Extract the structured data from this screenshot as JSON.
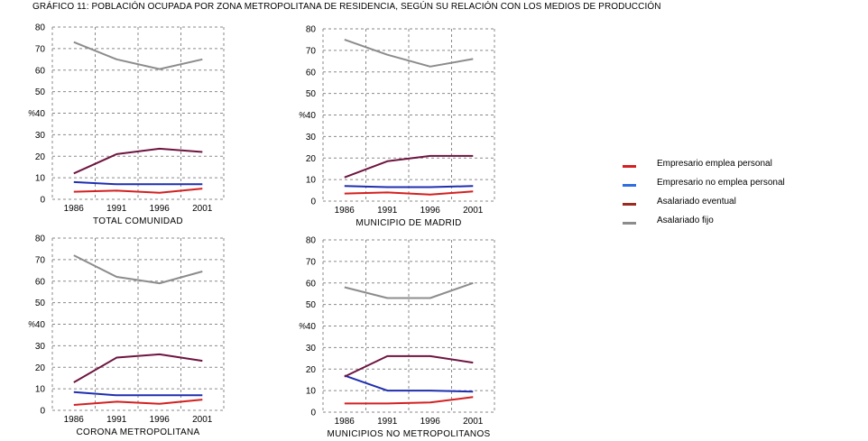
{
  "title": "GRÁFICO 11: POBLACIÓN OCUPADA POR ZONA METROPOLITANA DE RESIDENCIA, SEGÚN SU RELACIÓN CON LOS MEDIOS DE PRODUCCIÓN",
  "legend": [
    {
      "label": "Empresario emplea personal",
      "color": "#d42020"
    },
    {
      "label": "Empresario no emplea personal",
      "color": "#2f6de0"
    },
    {
      "label": "Asalariado eventual",
      "color": "#9a2b1e"
    },
    {
      "label": "Asalariado fijo",
      "color": "#8c8c8c"
    }
  ],
  "chart_data": [
    {
      "type": "line",
      "xlabel": "TOTAL COMUNIDAD",
      "ylabel": "%",
      "ylim": [
        0,
        80
      ],
      "yticks": [
        0,
        10,
        20,
        30,
        40,
        50,
        60,
        70,
        80
      ],
      "x": [
        "1986",
        "1991",
        "1996",
        "2001"
      ],
      "grid": true,
      "series": [
        {
          "name": "Empresario emplea personal",
          "color": "#d42020",
          "values": [
            3.5,
            4,
            3,
            5
          ]
        },
        {
          "name": "Empresario no emplea personal",
          "color": "#1f2fb0",
          "values": [
            8,
            7,
            7,
            7
          ]
        },
        {
          "name": "Asalariado eventual",
          "color": "#6e1540",
          "values": [
            12,
            21,
            23.5,
            22
          ]
        },
        {
          "name": "Asalariado fijo",
          "color": "#8c8c8c",
          "values": [
            73,
            65,
            60.5,
            65
          ]
        }
      ]
    },
    {
      "type": "line",
      "xlabel": "MUNICIPIO DE MADRID",
      "ylabel": "%",
      "ylim": [
        0,
        80
      ],
      "yticks": [
        0,
        10,
        20,
        30,
        40,
        50,
        60,
        70,
        80
      ],
      "x": [
        "1986",
        "1991",
        "1996",
        "2001"
      ],
      "grid": true,
      "series": [
        {
          "name": "Empresario emplea personal",
          "color": "#d42020",
          "values": [
            3.5,
            4,
            3,
            4.5
          ]
        },
        {
          "name": "Empresario no emplea personal",
          "color": "#1f2fb0",
          "values": [
            7,
            6.5,
            6.5,
            7
          ]
        },
        {
          "name": "Asalariado eventual",
          "color": "#6e1540",
          "values": [
            11,
            18.5,
            21,
            21
          ]
        },
        {
          "name": "Asalariado fijo",
          "color": "#8c8c8c",
          "values": [
            75,
            68,
            62.5,
            66
          ]
        }
      ]
    },
    {
      "type": "line",
      "xlabel": "CORONA METROPOLITANA",
      "ylabel": "%",
      "ylim": [
        0,
        80
      ],
      "yticks": [
        0,
        10,
        20,
        30,
        40,
        50,
        60,
        70,
        80
      ],
      "x": [
        "1986",
        "1991",
        "1996",
        "2001"
      ],
      "grid": true,
      "series": [
        {
          "name": "Empresario emplea personal",
          "color": "#d42020",
          "values": [
            2.5,
            4,
            3,
            5
          ]
        },
        {
          "name": "Empresario no emplea personal",
          "color": "#1f2fb0",
          "values": [
            8.5,
            7,
            7,
            7
          ]
        },
        {
          "name": "Asalariado eventual",
          "color": "#6e1540",
          "values": [
            13,
            24.5,
            26,
            23
          ]
        },
        {
          "name": "Asalariado fijo",
          "color": "#8c8c8c",
          "values": [
            72,
            62,
            59,
            64.5
          ]
        }
      ]
    },
    {
      "type": "line",
      "xlabel": "MUNICIPIOS NO METROPOLITANOS",
      "ylabel": "%",
      "ylim": [
        0,
        80
      ],
      "yticks": [
        0,
        10,
        20,
        30,
        40,
        50,
        60,
        70,
        80
      ],
      "x": [
        "1986",
        "1991",
        "1996",
        "2001"
      ],
      "grid": true,
      "series": [
        {
          "name": "Empresario emplea personal",
          "color": "#d42020",
          "values": [
            4,
            4,
            4.5,
            7
          ]
        },
        {
          "name": "Empresario no emplea personal",
          "color": "#1f2fb0",
          "values": [
            17,
            10,
            10,
            9.5
          ]
        },
        {
          "name": "Asalariado eventual",
          "color": "#6e1540",
          "values": [
            16.5,
            26,
            26,
            23
          ]
        },
        {
          "name": "Asalariado fijo",
          "color": "#8c8c8c",
          "values": [
            58,
            53,
            53,
            60
          ]
        }
      ]
    }
  ]
}
